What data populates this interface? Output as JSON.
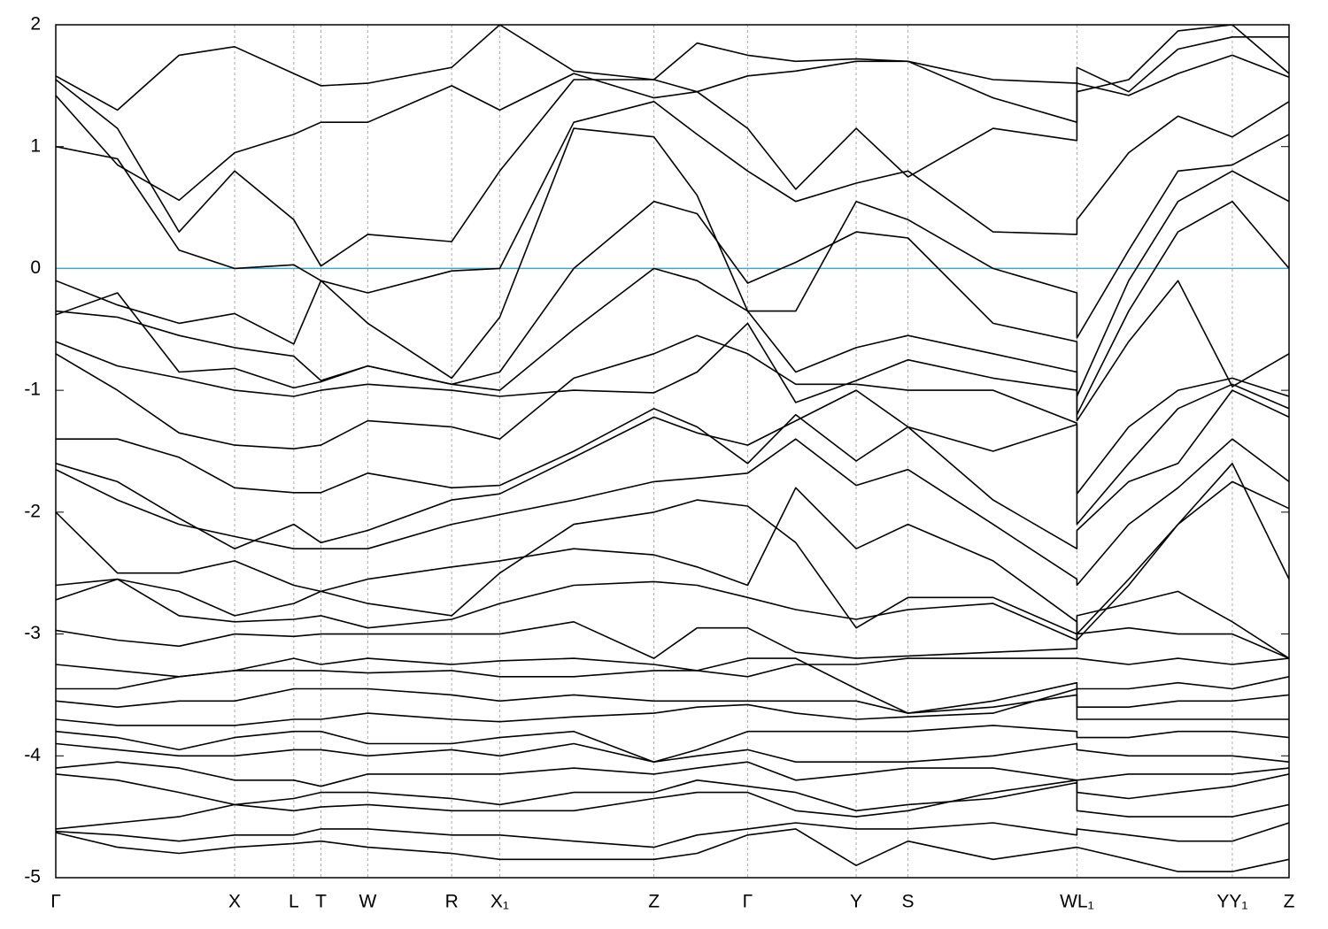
{
  "chart_data": {
    "type": "line",
    "color": "#000000",
    "refline": {
      "value": 0,
      "color": "#4aa3c4"
    },
    "xgrid": true,
    "xlim": [
      0,
      1
    ],
    "ylim": [
      -5,
      2
    ],
    "yticks": [
      2,
      1,
      0,
      -1,
      -2,
      -3,
      -4,
      -5
    ],
    "xticks": [
      {
        "value": 0,
        "label": "Γ"
      },
      {
        "value": 0.145,
        "label": "X"
      },
      {
        "value": 0.193,
        "label": "L"
      },
      {
        "value": 0.215,
        "label": "T"
      },
      {
        "value": 0.253,
        "label": "W"
      },
      {
        "value": 0.321,
        "label": "R"
      },
      {
        "value": 0.36,
        "label": "X₁"
      },
      {
        "value": 0.485,
        "label": "Z"
      },
      {
        "value": 0.561,
        "label": "Γ"
      },
      {
        "value": 0.649,
        "label": "Y"
      },
      {
        "value": 0.691,
        "label": "S"
      },
      {
        "value": 0.828,
        "label": "WL₁"
      },
      {
        "value": 0.954,
        "label": "YY₁"
      },
      {
        "value": 1,
        "label": "Z"
      }
    ],
    "x": [
      0,
      0.05,
      0.1,
      0.145,
      0.193,
      0.215,
      0.253,
      0.321,
      0.36,
      0.42,
      0.485,
      0.52,
      0.561,
      0.6,
      0.649,
      0.691,
      0.76,
      0.828,
      0.828,
      0.87,
      0.91,
      0.954,
      1
    ],
    "series": [
      {
        "values": [
          1.58,
          1.3,
          1.75,
          1.82,
          1.6,
          1.5,
          1.52,
          1.65,
          2.0,
          1.62,
          1.55,
          1.85,
          1.75,
          1.7,
          1.72,
          1.7,
          1.4,
          1.2,
          1.52,
          1.42,
          1.6,
          1.75,
          1.57
        ]
      },
      {
        "values": [
          1.42,
          0.85,
          0.56,
          0.95,
          1.1,
          1.2,
          1.2,
          1.5,
          1.3,
          1.6,
          1.4,
          1.45,
          1.58,
          1.62,
          1.7,
          1.7,
          1.55,
          1.52,
          1.65,
          1.45,
          1.8,
          1.9,
          1.9
        ]
      },
      {
        "values": [
          1.55,
          1.15,
          0.3,
          0.8,
          0.4,
          0.02,
          0.28,
          0.22,
          0.8,
          1.55,
          1.55,
          1.45,
          1.15,
          0.65,
          1.15,
          0.75,
          1.15,
          1.05,
          1.45,
          1.55,
          1.95,
          2.0,
          1.6
        ]
      },
      {
        "values": [
          1.0,
          0.9,
          0.15,
          0.0,
          0.03,
          -0.1,
          -0.2,
          -0.02,
          0.0,
          1.2,
          1.37,
          1.1,
          0.8,
          0.55,
          0.7,
          0.8,
          0.3,
          0.28,
          0.4,
          0.95,
          1.25,
          1.08,
          1.37
        ]
      },
      {
        "values": [
          -0.1,
          -0.3,
          -0.45,
          -0.37,
          -0.62,
          -0.1,
          -0.45,
          -0.9,
          -0.4,
          1.15,
          1.08,
          0.6,
          -0.35,
          -0.35,
          0.55,
          0.4,
          0.0,
          -0.2,
          -0.57,
          0.15,
          0.8,
          0.85,
          1.1
        ]
      },
      {
        "values": [
          -0.35,
          -0.4,
          -0.55,
          -0.65,
          -0.72,
          -0.92,
          -0.8,
          -0.95,
          -0.85,
          0.0,
          0.55,
          0.45,
          -0.12,
          0.05,
          0.3,
          0.25,
          -0.45,
          -0.6,
          -1.05,
          -0.1,
          0.55,
          0.8,
          0.55
        ]
      },
      {
        "values": [
          -0.38,
          -0.2,
          -0.85,
          -0.82,
          -0.98,
          -0.93,
          -0.8,
          -0.95,
          -1.0,
          -0.5,
          0.0,
          -0.1,
          -0.35,
          -0.85,
          -0.65,
          -0.55,
          -0.7,
          -0.85,
          -1.2,
          -0.35,
          0.3,
          0.55,
          0.0
        ]
      },
      {
        "values": [
          -0.6,
          -0.8,
          -0.9,
          -1.0,
          -1.05,
          -1.0,
          -0.95,
          -1.0,
          -1.05,
          -1.0,
          -1.02,
          -0.85,
          -0.45,
          -1.1,
          -0.92,
          -0.75,
          -0.9,
          -1.0,
          -1.25,
          -0.6,
          -0.1,
          -0.97,
          -0.7
        ]
      },
      {
        "values": [
          -0.7,
          -1.0,
          -1.35,
          -1.45,
          -1.48,
          -1.45,
          -1.25,
          -1.3,
          -1.4,
          -0.9,
          -0.7,
          -0.55,
          -0.7,
          -0.95,
          -0.95,
          -1.0,
          -1.0,
          -1.27,
          -1.85,
          -1.3,
          -1.0,
          -0.9,
          -1.05
        ]
      },
      {
        "values": [
          -1.4,
          -1.4,
          -1.55,
          -1.8,
          -1.84,
          -1.84,
          -1.68,
          -1.8,
          -1.78,
          -1.5,
          -1.15,
          -1.3,
          -1.6,
          -1.2,
          -1.58,
          -1.3,
          -1.5,
          -1.28,
          -2.1,
          -1.6,
          -1.15,
          -0.95,
          -1.15
        ]
      },
      {
        "values": [
          -1.6,
          -1.75,
          -2.05,
          -2.3,
          -2.1,
          -2.25,
          -2.15,
          -1.9,
          -1.85,
          -1.55,
          -1.22,
          -1.35,
          -1.45,
          -1.25,
          -1.0,
          -1.3,
          -1.9,
          -2.3,
          -2.15,
          -1.75,
          -1.6,
          -1.0,
          -1.22
        ]
      },
      {
        "values": [
          -1.65,
          -1.9,
          -2.1,
          -2.2,
          -2.3,
          -2.3,
          -2.3,
          -2.1,
          -2.02,
          -1.9,
          -1.75,
          -1.72,
          -1.68,
          -1.4,
          -1.78,
          -1.65,
          -2.1,
          -2.55,
          -2.6,
          -2.1,
          -1.8,
          -1.4,
          -1.75
        ]
      },
      {
        "values": [
          -2.0,
          -2.5,
          -2.5,
          -2.4,
          -2.6,
          -2.65,
          -2.55,
          -2.45,
          -2.4,
          -2.3,
          -2.35,
          -2.45,
          -2.6,
          -1.8,
          -2.3,
          -2.1,
          -2.4,
          -2.9,
          -3.0,
          -2.55,
          -2.1,
          -1.75,
          -1.97
        ]
      },
      {
        "values": [
          -2.6,
          -2.55,
          -2.65,
          -2.85,
          -2.75,
          -2.65,
          -2.75,
          -2.85,
          -2.5,
          -2.1,
          -2.0,
          -1.9,
          -1.95,
          -2.25,
          -2.95,
          -2.7,
          -2.7,
          -3.0,
          -3.05,
          -2.6,
          -2.1,
          -1.6,
          -2.55
        ]
      },
      {
        "values": [
          -2.72,
          -2.55,
          -2.85,
          -2.9,
          -2.88,
          -2.85,
          -2.95,
          -2.88,
          -2.75,
          -2.6,
          -2.57,
          -2.6,
          -2.7,
          -2.8,
          -2.88,
          -2.8,
          -2.75,
          -3.05,
          -2.85,
          -2.75,
          -2.65,
          -2.9,
          -3.2
        ]
      },
      {
        "values": [
          -2.97,
          -3.05,
          -3.1,
          -3.0,
          -3.02,
          -3.0,
          -3.0,
          -3.0,
          -3.0,
          -2.9,
          -3.2,
          -2.95,
          -2.95,
          -3.15,
          -3.2,
          -3.18,
          -3.15,
          -3.12,
          -3.0,
          -2.95,
          -3.0,
          -3.0,
          -3.2
        ]
      },
      {
        "values": [
          -3.25,
          -3.3,
          -3.35,
          -3.3,
          -3.2,
          -3.25,
          -3.2,
          -3.25,
          -3.22,
          -3.2,
          -3.25,
          -3.3,
          -3.35,
          -3.25,
          -3.25,
          -3.2,
          -3.2,
          -3.2,
          -3.2,
          -3.25,
          -3.2,
          -3.25,
          -3.2
        ]
      },
      {
        "values": [
          -3.45,
          -3.45,
          -3.35,
          -3.3,
          -3.3,
          -3.3,
          -3.32,
          -3.3,
          -3.35,
          -3.35,
          -3.3,
          -3.3,
          -3.2,
          -3.2,
          -3.45,
          -3.65,
          -3.55,
          -3.4,
          -3.45,
          -3.45,
          -3.4,
          -3.45,
          -3.35
        ]
      },
      {
        "values": [
          -3.55,
          -3.6,
          -3.55,
          -3.55,
          -3.45,
          -3.45,
          -3.45,
          -3.5,
          -3.55,
          -3.5,
          -3.55,
          -3.55,
          -3.55,
          -3.55,
          -3.55,
          -3.65,
          -3.6,
          -3.5,
          -3.6,
          -3.6,
          -3.55,
          -3.55,
          -3.5
        ]
      },
      {
        "values": [
          -3.7,
          -3.75,
          -3.75,
          -3.75,
          -3.7,
          -3.7,
          -3.65,
          -3.7,
          -3.72,
          -3.68,
          -3.65,
          -3.6,
          -3.58,
          -3.65,
          -3.7,
          -3.68,
          -3.65,
          -3.45,
          -3.7,
          -3.7,
          -3.7,
          -3.7,
          -3.7
        ]
      },
      {
        "values": [
          -3.8,
          -3.85,
          -3.95,
          -3.85,
          -3.8,
          -3.8,
          -3.9,
          -3.9,
          -3.85,
          -3.8,
          -4.05,
          -3.95,
          -3.8,
          -3.8,
          -3.8,
          -3.8,
          -3.75,
          -3.8,
          -3.85,
          -3.85,
          -3.8,
          -3.8,
          -3.85
        ]
      },
      {
        "values": [
          -3.9,
          -3.95,
          -4.0,
          -4.0,
          -3.95,
          -3.95,
          -4.0,
          -3.95,
          -4.0,
          -3.9,
          -4.05,
          -4.0,
          -3.95,
          -4.05,
          -4.05,
          -4.05,
          -4.0,
          -3.9,
          -3.95,
          -4.0,
          -4.0,
          -4.0,
          -4.05
        ]
      },
      {
        "values": [
          -4.1,
          -4.05,
          -4.1,
          -4.2,
          -4.2,
          -4.25,
          -4.15,
          -4.15,
          -4.15,
          -4.1,
          -4.15,
          -4.1,
          -4.05,
          -4.2,
          -4.15,
          -4.1,
          -4.1,
          -4.2,
          -4.2,
          -4.15,
          -4.15,
          -4.15,
          -4.1
        ]
      },
      {
        "values": [
          -4.15,
          -4.2,
          -4.3,
          -4.4,
          -4.35,
          -4.3,
          -4.3,
          -4.35,
          -4.4,
          -4.3,
          -4.3,
          -4.2,
          -4.25,
          -4.3,
          -4.45,
          -4.4,
          -4.35,
          -4.22,
          -4.3,
          -4.35,
          -4.3,
          -4.25,
          -4.15
        ]
      },
      {
        "values": [
          -4.6,
          -4.55,
          -4.5,
          -4.4,
          -4.45,
          -4.42,
          -4.4,
          -4.45,
          -4.45,
          -4.45,
          -4.35,
          -4.3,
          -4.3,
          -4.45,
          -4.5,
          -4.45,
          -4.3,
          -4.2,
          -4.45,
          -4.5,
          -4.5,
          -4.5,
          -4.4
        ]
      },
      {
        "values": [
          -4.62,
          -4.65,
          -4.7,
          -4.65,
          -4.65,
          -4.6,
          -4.6,
          -4.65,
          -4.65,
          -4.7,
          -4.75,
          -4.65,
          -4.6,
          -4.55,
          -4.6,
          -4.6,
          -4.55,
          -4.65,
          -4.6,
          -4.65,
          -4.7,
          -4.7,
          -4.55
        ]
      },
      {
        "values": [
          -4.63,
          -4.75,
          -4.8,
          -4.75,
          -4.72,
          -4.7,
          -4.75,
          -4.8,
          -4.85,
          -4.85,
          -4.85,
          -4.8,
          -4.65,
          -4.6,
          -4.9,
          -4.7,
          -4.85,
          -4.75,
          -4.75,
          -4.85,
          -4.95,
          -4.95,
          -4.85
        ]
      }
    ]
  }
}
